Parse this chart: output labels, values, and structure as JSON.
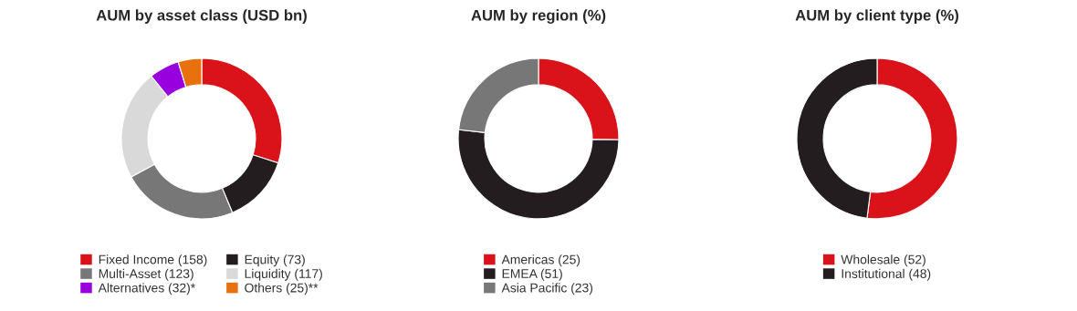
{
  "chart_data": [
    {
      "type": "donut",
      "title": "AUM by asset class (USD bn)",
      "categories": [
        "Fixed Income (158)",
        "Equity (73)",
        "Multi-Asset (123)",
        "Liquidity (117)",
        "Alternatives (32)*",
        "Others (25)**"
      ],
      "values": [
        158,
        73,
        123,
        117,
        32,
        25
      ],
      "colors": [
        "#da1219",
        "#231d20",
        "#777777",
        "#d9d9d9",
        "#9900de",
        "#e8700e"
      ],
      "legend": "bottom"
    },
    {
      "type": "donut",
      "title": "AUM by region (%)",
      "categories": [
        "Americas (25)",
        "EMEA (51)",
        "Asia Pacific (23)"
      ],
      "values": [
        25,
        51,
        23
      ],
      "colors": [
        "#da1219",
        "#231d20",
        "#777777"
      ],
      "legend": "bottom"
    },
    {
      "type": "donut",
      "title": "AUM by client type (%)",
      "categories": [
        "Wholesale (52)",
        "Institutional (48)"
      ],
      "values": [
        52,
        48
      ],
      "colors": [
        "#da1219",
        "#231d20"
      ],
      "legend": "bottom"
    }
  ]
}
